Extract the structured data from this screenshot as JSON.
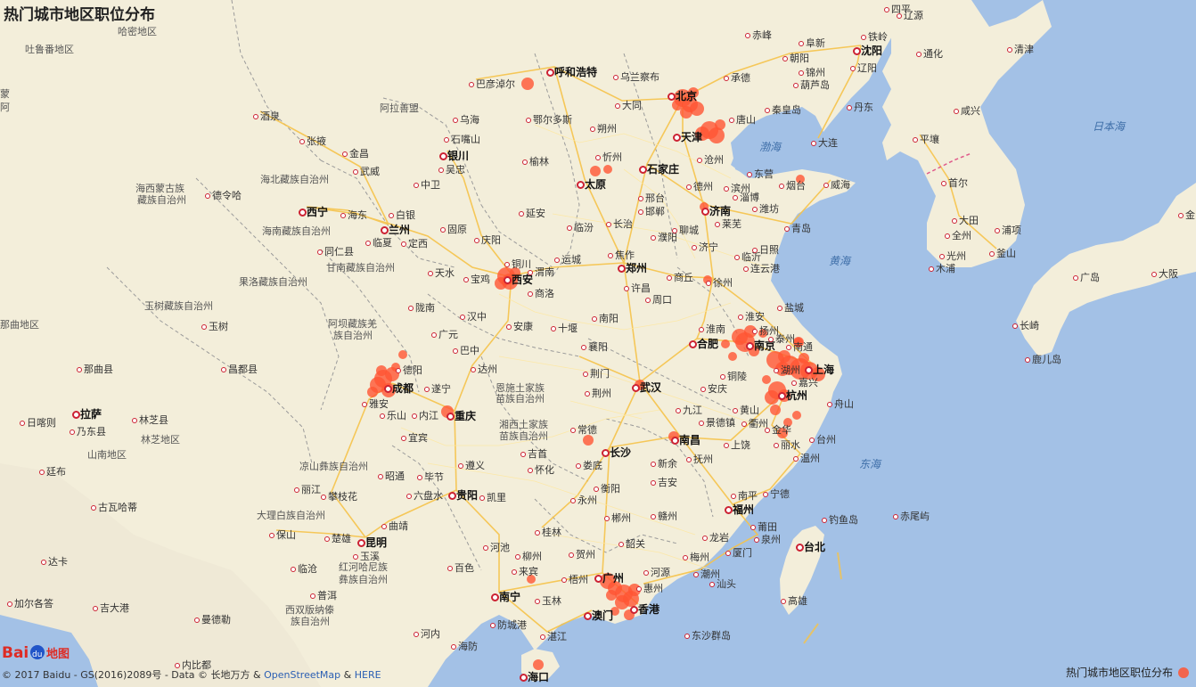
{
  "title": "热门城市地区职位分布",
  "legend": {
    "label": "热门城市地区职位分布",
    "color": "#ff5533"
  },
  "copyright": {
    "prefix": "© 2017 Baidu - GS(2016)2089号 - Data © 长地万方 & ",
    "osm": "OpenStreetMap",
    "amp": " & ",
    "here": "HERE"
  },
  "logo": {
    "text": "Bai",
    "text2": "地图"
  },
  "labels": [
    [
      "吐鲁番地区",
      28,
      50,
      "gray"
    ],
    [
      "哈密地区",
      132,
      30,
      "gray"
    ],
    [
      "蒙",
      0,
      100,
      "gray"
    ],
    [
      "阿",
      0,
      115,
      "gray"
    ],
    [
      "酒泉",
      292,
      125,
      ""
    ],
    [
      "张掖",
      344,
      153,
      ""
    ],
    [
      "金昌",
      392,
      167,
      ""
    ],
    [
      "武威",
      404,
      187,
      ""
    ],
    [
      "海北藏族自治州",
      292,
      196,
      "gray"
    ],
    [
      "海西蒙古族",
      152,
      206,
      "gray"
    ],
    [
      "藏族自治州",
      154,
      219,
      "gray"
    ],
    [
      "德令哈",
      238,
      214,
      ""
    ],
    [
      "西宁",
      344,
      232,
      "big"
    ],
    [
      "海东",
      390,
      236,
      ""
    ],
    [
      "海南藏族自治州",
      294,
      254,
      "gray"
    ],
    [
      "同仁县",
      364,
      277,
      ""
    ],
    [
      "甘南藏族自治州",
      366,
      295,
      "gray"
    ],
    [
      "果洛藏族自治州",
      268,
      311,
      "gray"
    ],
    [
      "玉树藏族自治州",
      162,
      338,
      "gray"
    ],
    [
      "阿坝藏族羌",
      368,
      358,
      "gray"
    ],
    [
      "族自治州",
      374,
      371,
      "gray"
    ],
    [
      "那曲地区",
      0,
      359,
      "gray"
    ],
    [
      "玉树",
      234,
      361,
      ""
    ],
    [
      "那曲县",
      94,
      409,
      ""
    ],
    [
      "昌都县",
      256,
      409,
      ""
    ],
    [
      "日喀则",
      30,
      469,
      ""
    ],
    [
      "拉萨",
      90,
      459,
      "big"
    ],
    [
      "乃东县",
      86,
      479,
      ""
    ],
    [
      "林芝县",
      156,
      466,
      ""
    ],
    [
      "林芝地区",
      158,
      488,
      "gray"
    ],
    [
      "山南地区",
      98,
      505,
      "gray"
    ],
    [
      "廷布",
      52,
      524,
      ""
    ],
    [
      "古瓦哈蒂",
      110,
      564,
      ""
    ],
    [
      "达卡",
      54,
      625,
      ""
    ],
    [
      "加尔各答",
      16,
      672,
      ""
    ],
    [
      "吉大港",
      112,
      677,
      ""
    ],
    [
      "曼德勒",
      226,
      690,
      ""
    ],
    [
      "内比都",
      204,
      741,
      ""
    ],
    [
      "阿拉善盟",
      426,
      116,
      "gray"
    ],
    [
      "乌海",
      516,
      129,
      ""
    ],
    [
      "石嘴山",
      506,
      151,
      ""
    ],
    [
      "银川",
      502,
      169,
      "big"
    ],
    [
      "吴忠",
      500,
      185,
      ""
    ],
    [
      "中卫",
      472,
      202,
      ""
    ],
    [
      "白银",
      444,
      236,
      ""
    ],
    [
      "兰州",
      436,
      252,
      "big"
    ],
    [
      "定西",
      458,
      268,
      ""
    ],
    [
      "临夏",
      418,
      267,
      ""
    ],
    [
      "固原",
      502,
      252,
      ""
    ],
    [
      "庆阳",
      540,
      264,
      ""
    ],
    [
      "天水",
      488,
      301,
      ""
    ],
    [
      "宝鸡",
      528,
      308,
      ""
    ],
    [
      "陇南",
      466,
      340,
      ""
    ],
    [
      "汉中",
      524,
      350,
      ""
    ],
    [
      "广元",
      492,
      370,
      ""
    ],
    [
      "巴中",
      516,
      388,
      ""
    ],
    [
      "达州",
      536,
      409,
      ""
    ],
    [
      "德阳",
      452,
      410,
      ""
    ],
    [
      "成都",
      440,
      430,
      "big"
    ],
    [
      "遂宁",
      484,
      431,
      ""
    ],
    [
      "雅安",
      414,
      448,
      ""
    ],
    [
      "乐山",
      434,
      461,
      ""
    ],
    [
      "内江",
      470,
      461,
      ""
    ],
    [
      "重庆",
      510,
      461,
      "big"
    ],
    [
      "宜宾",
      458,
      486,
      ""
    ],
    [
      "凉山彝族自治州",
      336,
      518,
      "gray"
    ],
    [
      "昭通",
      432,
      529,
      ""
    ],
    [
      "毕节",
      476,
      530,
      ""
    ],
    [
      "遵义",
      522,
      517,
      ""
    ],
    [
      "丽江",
      338,
      544,
      ""
    ],
    [
      "攀枝花",
      368,
      552,
      ""
    ],
    [
      "六盘水",
      464,
      551,
      ""
    ],
    [
      "贵阳",
      512,
      550,
      "big"
    ],
    [
      "凯里",
      546,
      553,
      ""
    ],
    [
      "曲靖",
      436,
      585,
      ""
    ],
    [
      "大理白族自治州",
      288,
      573,
      "gray"
    ],
    [
      "保山",
      310,
      595,
      ""
    ],
    [
      "楚雄",
      372,
      599,
      ""
    ],
    [
      "昆明",
      410,
      603,
      "big"
    ],
    [
      "玉溪",
      404,
      619,
      ""
    ],
    [
      "红河哈尼族",
      380,
      631,
      "gray"
    ],
    [
      "彝族自治州",
      380,
      645,
      "gray"
    ],
    [
      "临沧",
      334,
      633,
      ""
    ],
    [
      "普洱",
      356,
      663,
      ""
    ],
    [
      "西双版纳傣",
      320,
      679,
      "gray"
    ],
    [
      "族自治州",
      326,
      692,
      "gray"
    ],
    [
      "河内",
      472,
      706,
      ""
    ],
    [
      "海防",
      514,
      720,
      ""
    ],
    [
      "巴彦淖尔",
      534,
      89,
      ""
    ],
    [
      "呼和浩特",
      622,
      75,
      "big"
    ],
    [
      "乌兰察布",
      696,
      81,
      ""
    ],
    [
      "鄂尔多斯",
      598,
      129,
      ""
    ],
    [
      "朔州",
      670,
      139,
      ""
    ],
    [
      "大同",
      698,
      113,
      ""
    ],
    [
      "忻州",
      676,
      171,
      ""
    ],
    [
      "榆林",
      594,
      176,
      ""
    ],
    [
      "太原",
      656,
      201,
      "big"
    ],
    [
      "石家庄",
      726,
      184,
      "big"
    ],
    [
      "邢台",
      724,
      217,
      ""
    ],
    [
      "邯郸",
      724,
      232,
      ""
    ],
    [
      "长治",
      688,
      246,
      ""
    ],
    [
      "临汾",
      644,
      250,
      ""
    ],
    [
      "延安",
      590,
      234,
      ""
    ],
    [
      "铜川",
      574,
      291,
      ""
    ],
    [
      "西安",
      574,
      308,
      "big"
    ],
    [
      "渭南",
      600,
      300,
      ""
    ],
    [
      "运城",
      630,
      286,
      ""
    ],
    [
      "焦作",
      690,
      281,
      ""
    ],
    [
      "郑州",
      702,
      295,
      "big"
    ],
    [
      "商洛",
      600,
      324,
      ""
    ],
    [
      "许昌",
      708,
      318,
      ""
    ],
    [
      "周口",
      732,
      331,
      ""
    ],
    [
      "南阳",
      672,
      352,
      ""
    ],
    [
      "安康",
      576,
      361,
      ""
    ],
    [
      "十堰",
      626,
      363,
      ""
    ],
    [
      "襄阳",
      660,
      384,
      ""
    ],
    [
      "荆门",
      662,
      414,
      ""
    ],
    [
      "荆州",
      664,
      436,
      ""
    ],
    [
      "恩施土家族",
      556,
      430,
      "gray"
    ],
    [
      "苗族自治州",
      556,
      442,
      "gray"
    ],
    [
      "武汉",
      718,
      429,
      "big"
    ],
    [
      "湘西土家族",
      560,
      471,
      "gray"
    ],
    [
      "苗族自治州",
      560,
      484,
      "gray"
    ],
    [
      "常德",
      648,
      477,
      ""
    ],
    [
      "长沙",
      684,
      502,
      "big"
    ],
    [
      "吉首",
      592,
      504,
      ""
    ],
    [
      "怀化",
      600,
      522,
      ""
    ],
    [
      "娄底",
      654,
      517,
      ""
    ],
    [
      "衡阳",
      674,
      543,
      ""
    ],
    [
      "永州",
      648,
      556,
      ""
    ],
    [
      "郴州",
      686,
      576,
      ""
    ],
    [
      "桂林",
      608,
      592,
      ""
    ],
    [
      "河池",
      550,
      609,
      ""
    ],
    [
      "柳州",
      586,
      619,
      ""
    ],
    [
      "贺州",
      646,
      617,
      ""
    ],
    [
      "来宾",
      582,
      636,
      ""
    ],
    [
      "梧州",
      638,
      645,
      ""
    ],
    [
      "南宁",
      560,
      664,
      "big"
    ],
    [
      "玉林",
      608,
      669,
      ""
    ],
    [
      "百色",
      510,
      632,
      ""
    ],
    [
      "防城港",
      558,
      696,
      ""
    ],
    [
      "湛江",
      614,
      709,
      ""
    ],
    [
      "海口",
      592,
      754,
      "big"
    ],
    [
      "广州",
      676,
      643,
      "big"
    ],
    [
      "韶关",
      702,
      605,
      ""
    ],
    [
      "河源",
      730,
      637,
      ""
    ],
    [
      "惠州",
      722,
      655,
      ""
    ],
    [
      "香港",
      716,
      678,
      "big"
    ],
    [
      "澳门",
      664,
      685,
      "big"
    ],
    [
      "赣州",
      738,
      574,
      ""
    ],
    [
      "吉安",
      738,
      536,
      ""
    ],
    [
      "新余",
      738,
      515,
      ""
    ],
    [
      "南昌",
      762,
      488,
      "big"
    ],
    [
      "九江",
      766,
      455,
      ""
    ],
    [
      "抚州",
      778,
      510,
      ""
    ],
    [
      "上饶",
      820,
      494,
      ""
    ],
    [
      "景德镇",
      792,
      469,
      ""
    ],
    [
      "黄山",
      830,
      455,
      ""
    ],
    [
      "安庆",
      794,
      431,
      ""
    ],
    [
      "铜陵",
      816,
      417,
      ""
    ],
    [
      "合肥",
      782,
      380,
      "big"
    ],
    [
      "淮南",
      792,
      364,
      ""
    ],
    [
      "南京",
      846,
      382,
      "big"
    ],
    [
      "上海",
      912,
      409,
      "big"
    ],
    [
      "杭州",
      882,
      438,
      "big"
    ],
    [
      "湖州",
      876,
      410,
      ""
    ],
    [
      "嘉兴",
      896,
      424,
      ""
    ],
    [
      "舟山",
      936,
      448,
      ""
    ],
    [
      "金华",
      866,
      477,
      ""
    ],
    [
      "衢州",
      840,
      470,
      ""
    ],
    [
      "丽水",
      876,
      494,
      ""
    ],
    [
      "温州",
      898,
      509,
      ""
    ],
    [
      "台州",
      916,
      488,
      ""
    ],
    [
      "宁德",
      864,
      549,
      ""
    ],
    [
      "福州",
      822,
      566,
      "big"
    ],
    [
      "南平",
      828,
      551,
      ""
    ],
    [
      "莆田",
      850,
      586,
      ""
    ],
    [
      "泉州",
      854,
      600,
      ""
    ],
    [
      "厦门",
      822,
      615,
      ""
    ],
    [
      "龙岩",
      796,
      598,
      ""
    ],
    [
      "梅州",
      774,
      620,
      ""
    ],
    [
      "潮州",
      786,
      639,
      ""
    ],
    [
      "汕头",
      804,
      650,
      ""
    ],
    [
      "台北",
      902,
      608,
      "big"
    ],
    [
      "高雄",
      884,
      669,
      ""
    ],
    [
      "钓鱼岛",
      930,
      578,
      ""
    ],
    [
      "赤尾屿",
      1010,
      574,
      ""
    ],
    [
      "东沙群岛",
      776,
      708,
      ""
    ],
    [
      "北京",
      758,
      102,
      "big"
    ],
    [
      "天津",
      764,
      148,
      "big"
    ],
    [
      "承德",
      820,
      82,
      ""
    ],
    [
      "唐山",
      826,
      129,
      ""
    ],
    [
      "秦皇岛",
      866,
      118,
      ""
    ],
    [
      "沧州",
      790,
      174,
      ""
    ],
    [
      "德州",
      778,
      204,
      ""
    ],
    [
      "滨州",
      820,
      206,
      ""
    ],
    [
      "东营",
      846,
      190,
      ""
    ],
    [
      "济南",
      796,
      231,
      "big"
    ],
    [
      "淄博",
      830,
      216,
      ""
    ],
    [
      "潍坊",
      852,
      229,
      ""
    ],
    [
      "莱芜",
      810,
      246,
      ""
    ],
    [
      "济宁",
      784,
      272,
      ""
    ],
    [
      "临沂",
      832,
      283,
      ""
    ],
    [
      "日照",
      852,
      275,
      ""
    ],
    [
      "青岛",
      888,
      251,
      ""
    ],
    [
      "烟台",
      882,
      203,
      ""
    ],
    [
      "威海",
      932,
      202,
      ""
    ],
    [
      "濮阳",
      738,
      261,
      ""
    ],
    [
      "聊城",
      762,
      253,
      ""
    ],
    [
      "商丘",
      756,
      306,
      ""
    ],
    [
      "徐州",
      800,
      312,
      ""
    ],
    [
      "连云港",
      842,
      296,
      ""
    ],
    [
      "盐城",
      880,
      340,
      ""
    ],
    [
      "淮安",
      836,
      350,
      ""
    ],
    [
      "扬州",
      852,
      366,
      ""
    ],
    [
      "泰州",
      870,
      375,
      ""
    ],
    [
      "南通",
      890,
      384,
      ""
    ],
    [
      "赤峰",
      844,
      34,
      ""
    ],
    [
      "朝阳",
      886,
      60,
      ""
    ],
    [
      "阜新",
      904,
      43,
      ""
    ],
    [
      "锦州",
      904,
      76,
      ""
    ],
    [
      "葫芦岛",
      898,
      90,
      ""
    ],
    [
      "沈阳",
      966,
      51,
      "big"
    ],
    [
      "铁岭",
      974,
      36,
      ""
    ],
    [
      "辽阳",
      962,
      71,
      ""
    ],
    [
      "大连",
      918,
      155,
      ""
    ],
    [
      "丹东",
      958,
      115,
      ""
    ],
    [
      "通化",
      1036,
      55,
      ""
    ],
    [
      "辽源",
      1014,
      12,
      ""
    ],
    [
      "四平",
      1000,
      5,
      ""
    ],
    [
      "清津",
      1138,
      50,
      ""
    ],
    [
      "咸兴",
      1078,
      119,
      ""
    ],
    [
      "平壤",
      1032,
      151,
      ""
    ],
    [
      "首尔",
      1064,
      200,
      ""
    ],
    [
      "大田",
      1076,
      242,
      ""
    ],
    [
      "全州",
      1068,
      259,
      ""
    ],
    [
      "光州",
      1062,
      282,
      ""
    ],
    [
      "木浦",
      1050,
      296,
      ""
    ],
    [
      "釜山",
      1118,
      279,
      ""
    ],
    [
      "浦项",
      1124,
      253,
      ""
    ],
    [
      "广岛",
      1212,
      306,
      ""
    ],
    [
      "大阪",
      1300,
      302,
      ""
    ],
    [
      "长崎",
      1144,
      360,
      ""
    ],
    [
      "鹿儿岛",
      1158,
      398,
      ""
    ],
    [
      "金",
      1330,
      236,
      ""
    ],
    [
      "渤海",
      852,
      159,
      "sea"
    ],
    [
      "黄海",
      930,
      287,
      "sea"
    ],
    [
      "东海",
      964,
      515,
      "sea"
    ],
    [
      "日本海",
      1226,
      136,
      "sea"
    ]
  ],
  "cities": [
    [
      592,
      94,
      7
    ],
    [
      668,
      192,
      6
    ],
    [
      682,
      190,
      5
    ],
    [
      766,
      110,
      10
    ],
    [
      774,
      117,
      9
    ],
    [
      782,
      122,
      8
    ],
    [
      770,
      126,
      7
    ],
    [
      778,
      104,
      6
    ],
    [
      760,
      118,
      6
    ],
    [
      796,
      146,
      10
    ],
    [
      804,
      152,
      9
    ],
    [
      788,
      150,
      8
    ],
    [
      808,
      140,
      6
    ],
    [
      790,
      232,
      5
    ],
    [
      898,
      201,
      5
    ],
    [
      568,
      310,
      10
    ],
    [
      572,
      316,
      9
    ],
    [
      562,
      318,
      7
    ],
    [
      578,
      306,
      6
    ],
    [
      430,
      425,
      10
    ],
    [
      424,
      432,
      9
    ],
    [
      436,
      438,
      8
    ],
    [
      440,
      420,
      8
    ],
    [
      418,
      440,
      6
    ],
    [
      428,
      416,
      6
    ],
    [
      452,
      398,
      5
    ],
    [
      444,
      412,
      5
    ],
    [
      502,
      462,
      7
    ],
    [
      718,
      432,
      6
    ],
    [
      660,
      494,
      6
    ],
    [
      756,
      490,
      6
    ],
    [
      794,
      314,
      5
    ],
    [
      836,
      384,
      11
    ],
    [
      830,
      378,
      9
    ],
    [
      842,
      372,
      7
    ],
    [
      846,
      394,
      6
    ],
    [
      856,
      374,
      5
    ],
    [
      896,
      384,
      5
    ],
    [
      870,
      404,
      10
    ],
    [
      886,
      410,
      11
    ],
    [
      898,
      414,
      12
    ],
    [
      908,
      416,
      10
    ],
    [
      918,
      420,
      8
    ],
    [
      880,
      400,
      7
    ],
    [
      902,
      402,
      6
    ],
    [
      878,
      414,
      8
    ],
    [
      872,
      438,
      10
    ],
    [
      866,
      446,
      8
    ],
    [
      880,
      444,
      7
    ],
    [
      870,
      460,
      6
    ],
    [
      884,
      474,
      5
    ],
    [
      878,
      486,
      6
    ],
    [
      894,
      466,
      5
    ],
    [
      860,
      426,
      5
    ],
    [
      682,
      652,
      9
    ],
    [
      690,
      660,
      8
    ],
    [
      700,
      666,
      10
    ],
    [
      708,
      672,
      9
    ],
    [
      698,
      676,
      8
    ],
    [
      712,
      662,
      7
    ],
    [
      686,
      668,
      6
    ],
    [
      706,
      690,
      6
    ],
    [
      690,
      686,
      5
    ],
    [
      596,
      650,
      5
    ],
    [
      604,
      746,
      6
    ],
    [
      814,
      386,
      5
    ],
    [
      822,
      400,
      5
    ],
    [
      896,
      384,
      6
    ]
  ]
}
